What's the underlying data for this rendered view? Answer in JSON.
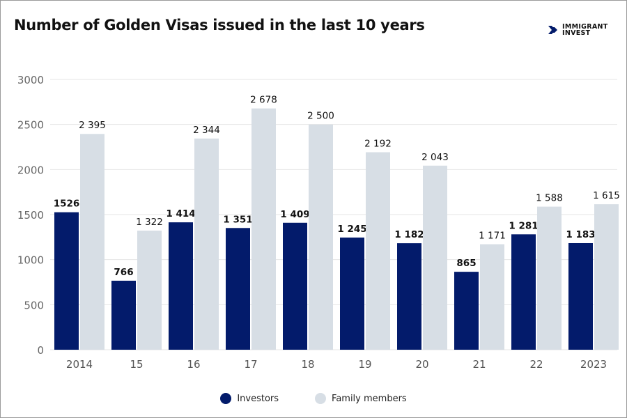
{
  "logo": {
    "line1": "IMMIGRANT",
    "line2": "INVEST"
  },
  "colors": {
    "investors": "#031b6b",
    "family": "#d7dee5",
    "grid": "#e6e6e6"
  },
  "chart_data": {
    "type": "bar",
    "title": "Number of Golden Visas issued in the last 10 years",
    "categories": [
      "2014",
      "15",
      "16",
      "17",
      "18",
      "19",
      "20",
      "21",
      "22",
      "2023"
    ],
    "series": [
      {
        "name": "Investors",
        "values": [
          1526,
          766,
          1414,
          1351,
          1409,
          1245,
          1182,
          865,
          1281,
          1183
        ],
        "labels": [
          "1526",
          "766",
          "1 414",
          "1 351",
          "1 409",
          "1 245",
          "1 182",
          "865",
          "1 281",
          "1 183"
        ]
      },
      {
        "name": "Family members",
        "values": [
          2395,
          1322,
          2344,
          2678,
          2500,
          2192,
          2043,
          1171,
          1588,
          1615
        ],
        "labels": [
          "2 395",
          "1 322",
          "2 344",
          "2 678",
          "2 500",
          "2 192",
          "2 043",
          "1 171",
          "1 588",
          "1 615"
        ]
      }
    ],
    "yticks": [
      "0",
      "500",
      "1000",
      "1500",
      "2000",
      "2500",
      "3000"
    ],
    "ylim": [
      0,
      3000
    ],
    "grid": true,
    "legend": "bottom"
  }
}
